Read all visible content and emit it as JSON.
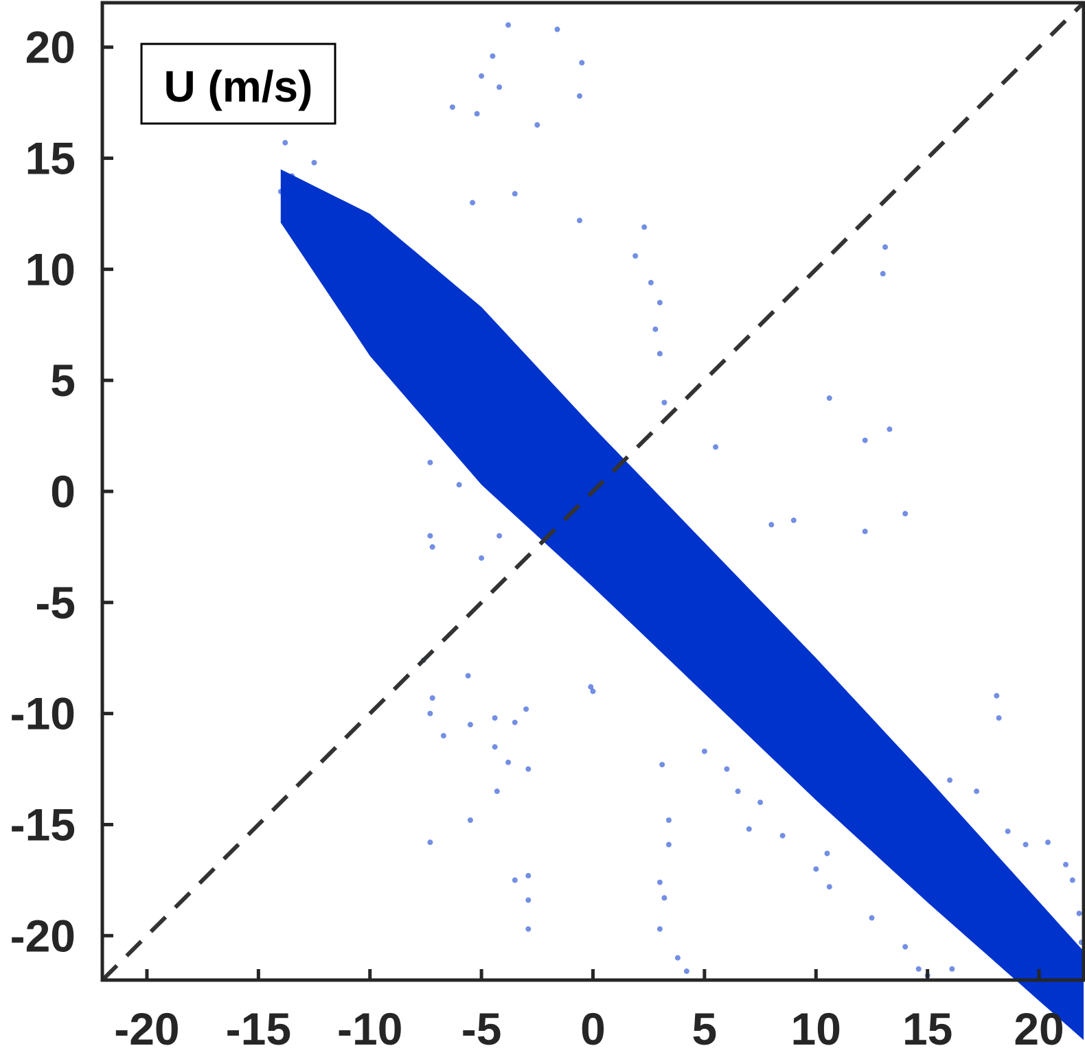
{
  "chart_data": {
    "type": "scatter",
    "annotation": "U (m/s)",
    "xlim": [
      -22,
      22
    ],
    "ylim": [
      -22,
      22
    ],
    "x_ticks": [
      -20,
      -15,
      -10,
      -5,
      0,
      5,
      10,
      15,
      20
    ],
    "y_ticks": [
      20,
      15,
      10,
      5,
      0,
      -5,
      -10,
      -15,
      -20
    ],
    "x_tick_labels": [
      "-20",
      "-15",
      "-10",
      "-5",
      "0",
      "5",
      "10",
      "15",
      "20"
    ],
    "y_tick_labels": [
      "20",
      "15",
      "10",
      "5",
      "0",
      "-5",
      "-10",
      "-15",
      "-20"
    ],
    "reference_line": {
      "style": "dashed",
      "x": [
        -22,
        22
      ],
      "y": [
        -22,
        22
      ]
    },
    "series": [
      {
        "color": "#0033cc",
        "trend": {
          "slope": -1.0,
          "intercept": -0.7
        },
        "cloud_x_range": [
          -14,
          22
        ],
        "points": [
          [
            -14.0,
            13.5
          ],
          [
            -13.8,
            15.7
          ],
          [
            -13.5,
            14.2
          ],
          [
            -12.5,
            14.8
          ],
          [
            -12.0,
            13.0
          ],
          [
            -11.0,
            12.5
          ],
          [
            -10.5,
            11.8
          ],
          [
            -9.5,
            11.0
          ],
          [
            -8.0,
            9.5
          ],
          [
            -7.0,
            8.5
          ],
          [
            -6.0,
            7.0
          ],
          [
            -5.5,
            6.0
          ],
          [
            -4.5,
            4.5
          ],
          [
            -4.0,
            3.5
          ],
          [
            -3.0,
            2.5
          ],
          [
            -2.5,
            1.5
          ],
          [
            -1.5,
            0.5
          ],
          [
            -0.5,
            -0.3
          ],
          [
            0.5,
            -1.0
          ],
          [
            1.5,
            -2.0
          ],
          [
            2.5,
            -3.0
          ],
          [
            3.5,
            -4.0
          ],
          [
            4.5,
            -5.5
          ],
          [
            5.5,
            -6.5
          ],
          [
            6.5,
            -7.5
          ],
          [
            7.5,
            -8.0
          ],
          [
            8.5,
            -9.5
          ],
          [
            9.5,
            -10.5
          ],
          [
            10.5,
            -11.0
          ],
          [
            11.5,
            -12.5
          ],
          [
            12.5,
            -13.0
          ],
          [
            13.5,
            -14.5
          ],
          [
            14.5,
            -15.5
          ],
          [
            15.5,
            -16.0
          ],
          [
            16.5,
            -17.0
          ],
          [
            17.5,
            -18.5
          ],
          [
            18.5,
            -19.0
          ],
          [
            19.5,
            -20.5
          ],
          [
            20.5,
            -21.0
          ],
          [
            21.5,
            -21.8
          ],
          [
            -5.0,
            18.7
          ],
          [
            -4.5,
            19.6
          ],
          [
            -3.8,
            21.0
          ],
          [
            -1.6,
            20.8
          ],
          [
            -0.5,
            19.3
          ],
          [
            -4.2,
            18.2
          ],
          [
            -5.2,
            17.0
          ],
          [
            -6.3,
            17.3
          ],
          [
            -2.5,
            16.5
          ],
          [
            -0.6,
            17.8
          ],
          [
            -5.4,
            13.0
          ],
          [
            -3.5,
            13.4
          ],
          [
            -0.6,
            12.2
          ],
          [
            2.3,
            11.9
          ],
          [
            1.9,
            10.6
          ],
          [
            2.6,
            9.4
          ],
          [
            3.0,
            8.5
          ],
          [
            2.8,
            7.3
          ],
          [
            3.0,
            6.2
          ],
          [
            3.2,
            4.0
          ],
          [
            13.1,
            11.0
          ],
          [
            13.0,
            9.8
          ],
          [
            10.6,
            4.2
          ],
          [
            13.3,
            2.8
          ],
          [
            12.2,
            2.3
          ],
          [
            5.5,
            2.0
          ],
          [
            14.0,
            -1.0
          ],
          [
            12.2,
            -1.8
          ],
          [
            9.0,
            -1.3
          ],
          [
            8.0,
            -1.5
          ],
          [
            -7.3,
            1.3
          ],
          [
            -6.0,
            0.3
          ],
          [
            -7.3,
            -2.0
          ],
          [
            -7.2,
            -2.5
          ],
          [
            -5.0,
            -3.0
          ],
          [
            -4.2,
            -2.0
          ],
          [
            -7.6,
            -7.6
          ],
          [
            -7.2,
            -9.3
          ],
          [
            -7.3,
            -10.0
          ],
          [
            -6.7,
            -11.0
          ],
          [
            -5.6,
            -8.3
          ],
          [
            -5.5,
            -10.5
          ],
          [
            -4.4,
            -10.2
          ],
          [
            -3.5,
            -10.4
          ],
          [
            -3.0,
            -9.8
          ],
          [
            -4.4,
            -11.5
          ],
          [
            -3.8,
            -12.2
          ],
          [
            -2.9,
            -12.5
          ],
          [
            -4.3,
            -13.5
          ],
          [
            -5.5,
            -14.8
          ],
          [
            -7.3,
            -15.8
          ],
          [
            -3.5,
            -17.5
          ],
          [
            -2.9,
            -17.3
          ],
          [
            -2.9,
            -18.4
          ],
          [
            -2.9,
            -19.7
          ],
          [
            -0.1,
            -8.8
          ],
          [
            0.0,
            -9.0
          ],
          [
            3.1,
            -12.3
          ],
          [
            3.4,
            -14.8
          ],
          [
            3.4,
            -15.9
          ],
          [
            3.0,
            -17.6
          ],
          [
            3.2,
            -18.3
          ],
          [
            3.0,
            -19.7
          ],
          [
            3.8,
            -21.0
          ],
          [
            4.2,
            -21.6
          ],
          [
            5.0,
            -11.7
          ],
          [
            6.0,
            -12.5
          ],
          [
            6.5,
            -13.5
          ],
          [
            7.5,
            -14.0
          ],
          [
            7.0,
            -15.2
          ],
          [
            8.5,
            -15.5
          ],
          [
            10.5,
            -16.3
          ],
          [
            10.6,
            -17.8
          ],
          [
            10.0,
            -17.0
          ],
          [
            12.5,
            -19.2
          ],
          [
            14.0,
            -20.5
          ],
          [
            14.6,
            -21.5
          ],
          [
            15.0,
            -21.8
          ],
          [
            16.1,
            -21.5
          ],
          [
            18.1,
            -9.2
          ],
          [
            18.2,
            -10.2
          ],
          [
            16.0,
            -13.0
          ],
          [
            17.2,
            -13.5
          ],
          [
            18.6,
            -15.3
          ],
          [
            19.4,
            -15.9
          ],
          [
            20.4,
            -15.8
          ],
          [
            21.2,
            -16.8
          ],
          [
            21.5,
            -17.5
          ],
          [
            21.8,
            -19.0
          ],
          [
            21.9,
            -20.3
          ]
        ]
      }
    ]
  }
}
